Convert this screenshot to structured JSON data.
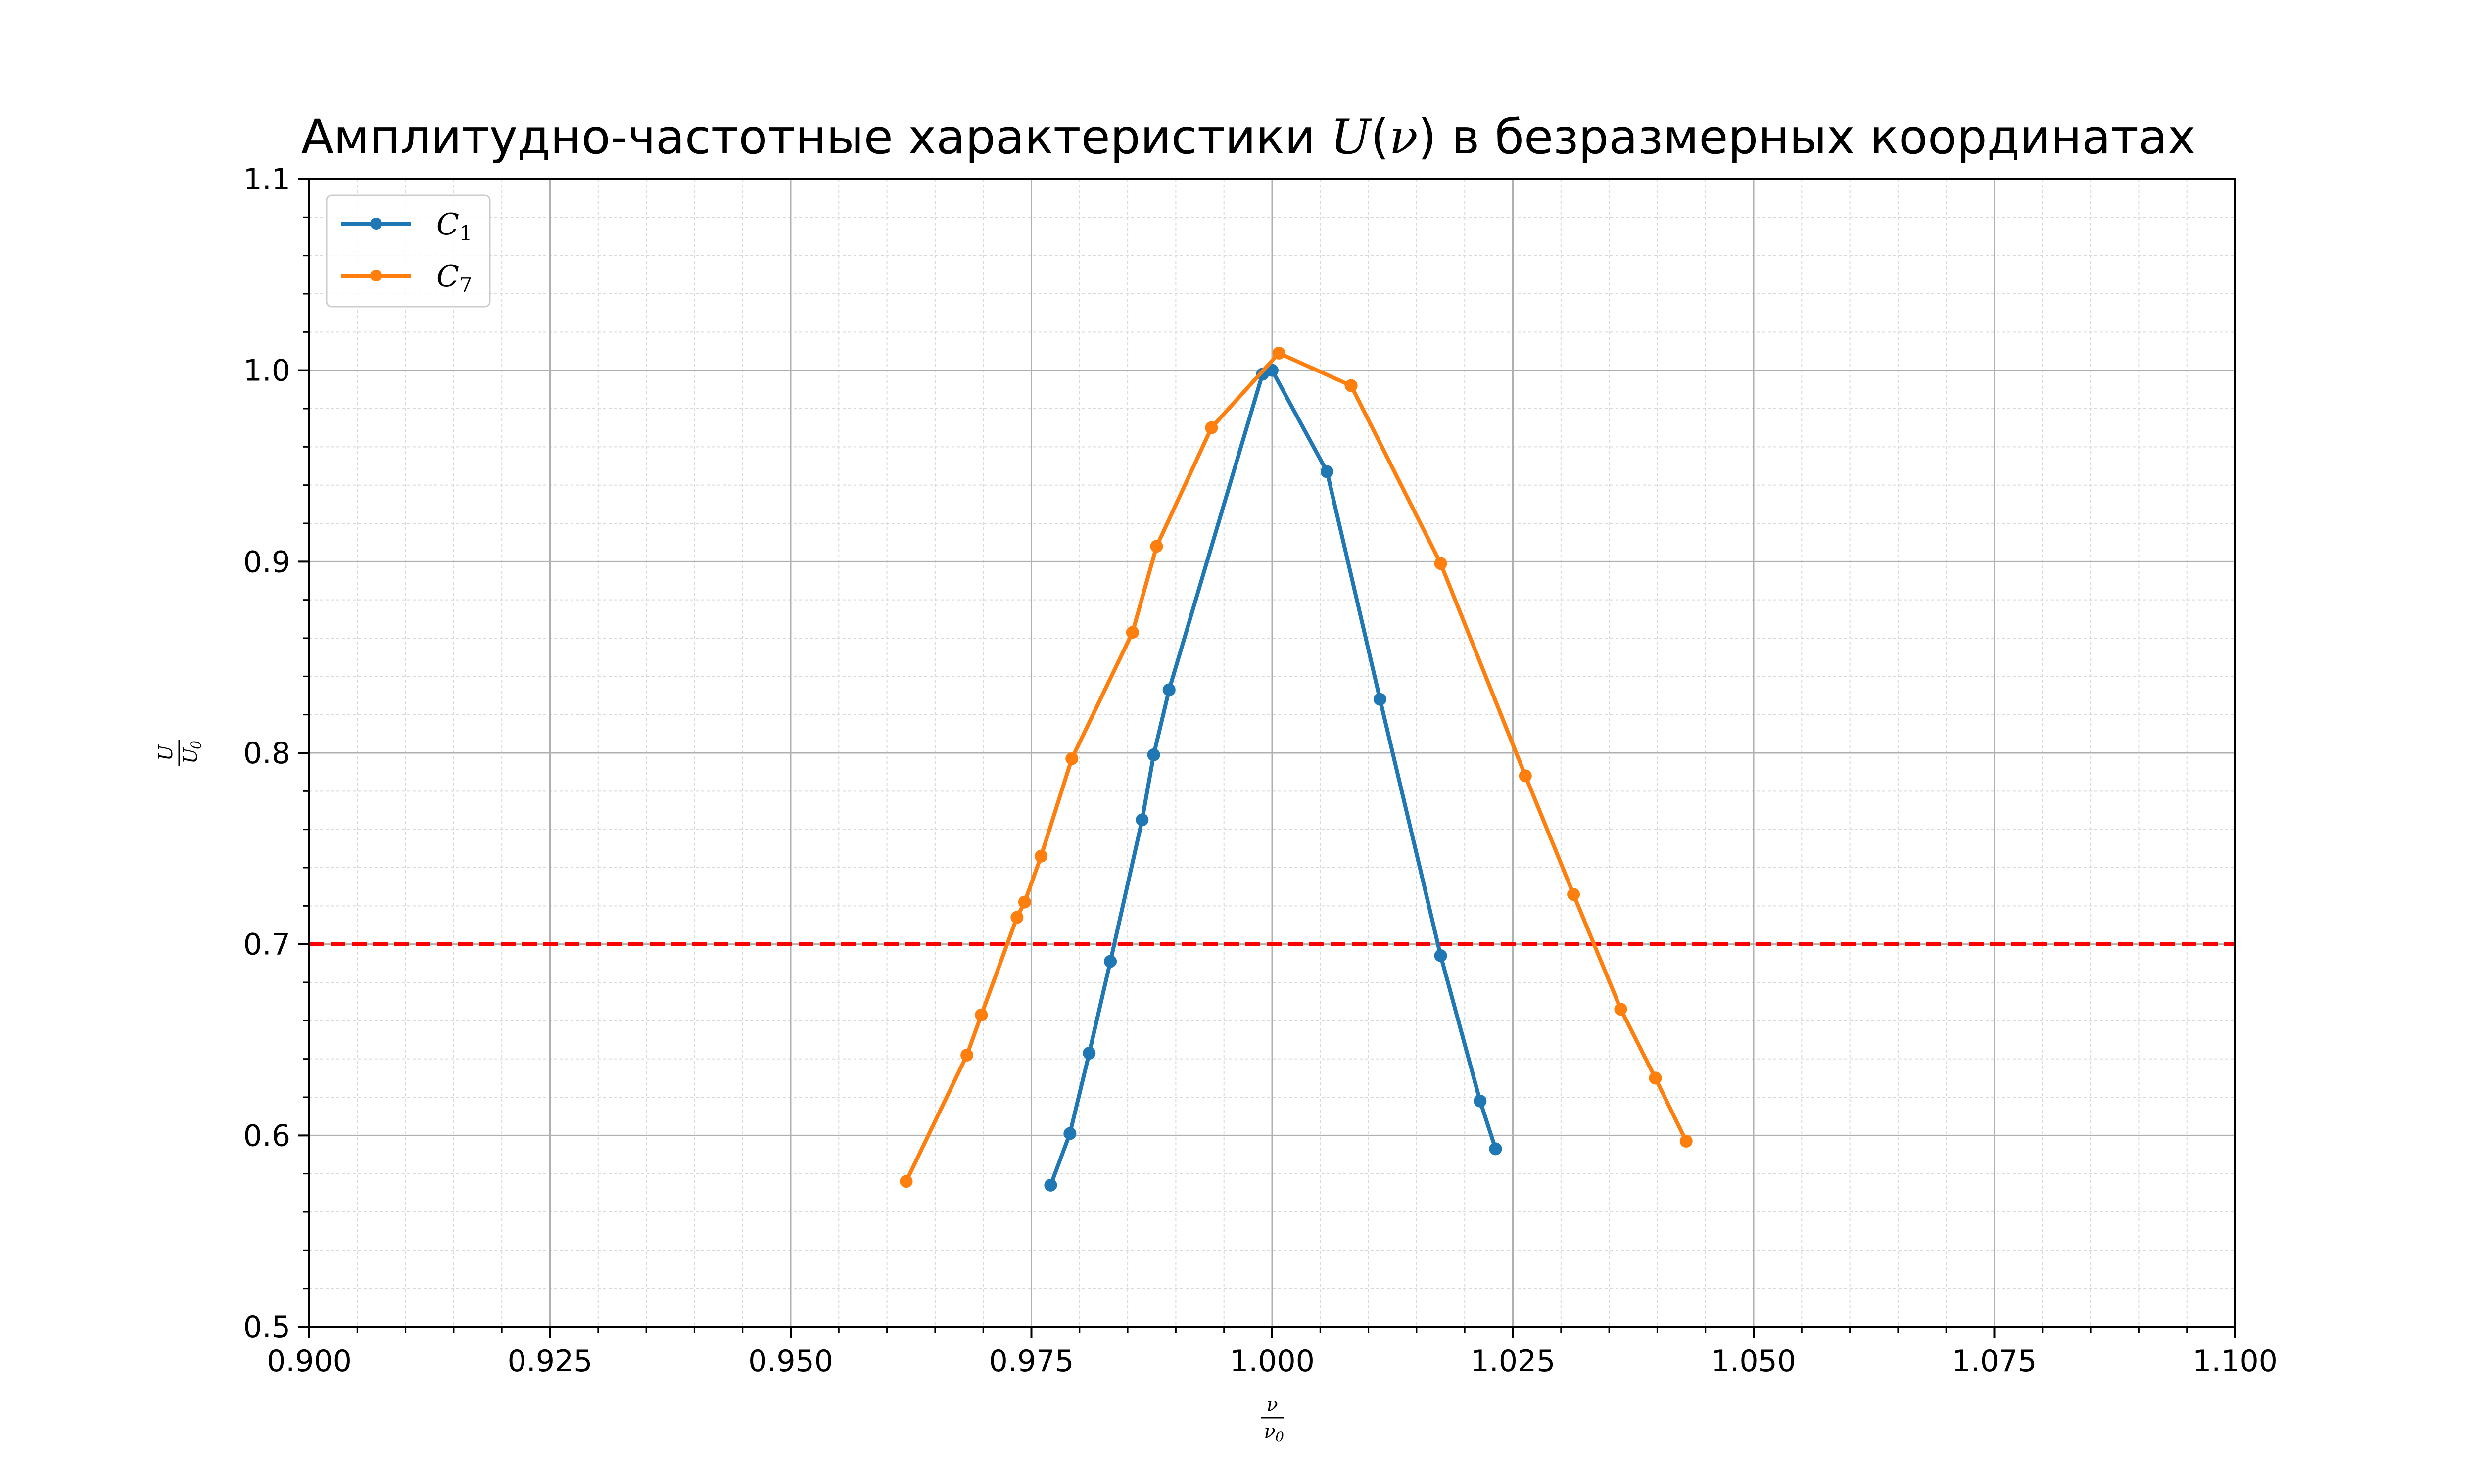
{
  "chart_data": {
    "type": "line",
    "title_prefix": "Амплитудно-частотные характеристики ",
    "title_math_var": "U",
    "title_math_paren_open": "(",
    "title_math_arg": "ν",
    "title_math_paren_close": ")",
    "title_suffix": " в безразмерных координатах",
    "xlabel": {
      "num": "ν",
      "den_base": "ν",
      "den_sub": "0"
    },
    "ylabel": {
      "num": "U",
      "den_base": "U",
      "den_sub": "0"
    },
    "xlim": [
      0.9,
      1.1
    ],
    "ylim": [
      0.5,
      1.1
    ],
    "x_ticks": [
      0.9,
      0.925,
      0.95,
      0.975,
      1.0,
      1.025,
      1.05,
      1.075,
      1.1
    ],
    "x_tick_labels": [
      "0.900",
      "0.925",
      "0.950",
      "0.975",
      "1.000",
      "1.025",
      "1.050",
      "1.075",
      "1.100"
    ],
    "y_ticks": [
      0.5,
      0.6,
      0.7,
      0.8,
      0.9,
      1.0,
      1.1
    ],
    "y_tick_labels": [
      "0.5",
      "0.6",
      "0.7",
      "0.8",
      "0.9",
      "1.0",
      "1.1"
    ],
    "grid": true,
    "minor_grid": true,
    "legend_position": "top-left",
    "reference_line": {
      "y": 0.7,
      "color": "#ff0000",
      "style": "dashed"
    },
    "series": [
      {
        "name_base": "C",
        "name_sub": "1",
        "color": "#1f77b4",
        "x": [
          0.977,
          0.979,
          0.981,
          0.9832,
          0.9865,
          0.9877,
          0.9893,
          0.999,
          1.0,
          1.0057,
          1.0112,
          1.0175,
          1.0216,
          1.0232
        ],
        "y": [
          0.574,
          0.601,
          0.643,
          0.691,
          0.765,
          0.799,
          0.833,
          0.998,
          1.0,
          0.947,
          0.828,
          0.694,
          0.618,
          0.593
        ]
      },
      {
        "name_base": "C",
        "name_sub": "7",
        "color": "#ff7f0e",
        "x": [
          0.962,
          0.9683,
          0.9698,
          0.9735,
          0.9743,
          0.976,
          0.9792,
          0.9855,
          0.988,
          0.9937,
          1.0007,
          1.0082,
          1.0175,
          1.0263,
          1.0313,
          1.0362,
          1.0398,
          1.043
        ],
        "y": [
          0.576,
          0.642,
          0.663,
          0.714,
          0.722,
          0.746,
          0.797,
          0.863,
          0.908,
          0.97,
          1.009,
          0.992,
          0.899,
          0.788,
          0.726,
          0.666,
          0.63,
          0.597
        ]
      }
    ]
  }
}
